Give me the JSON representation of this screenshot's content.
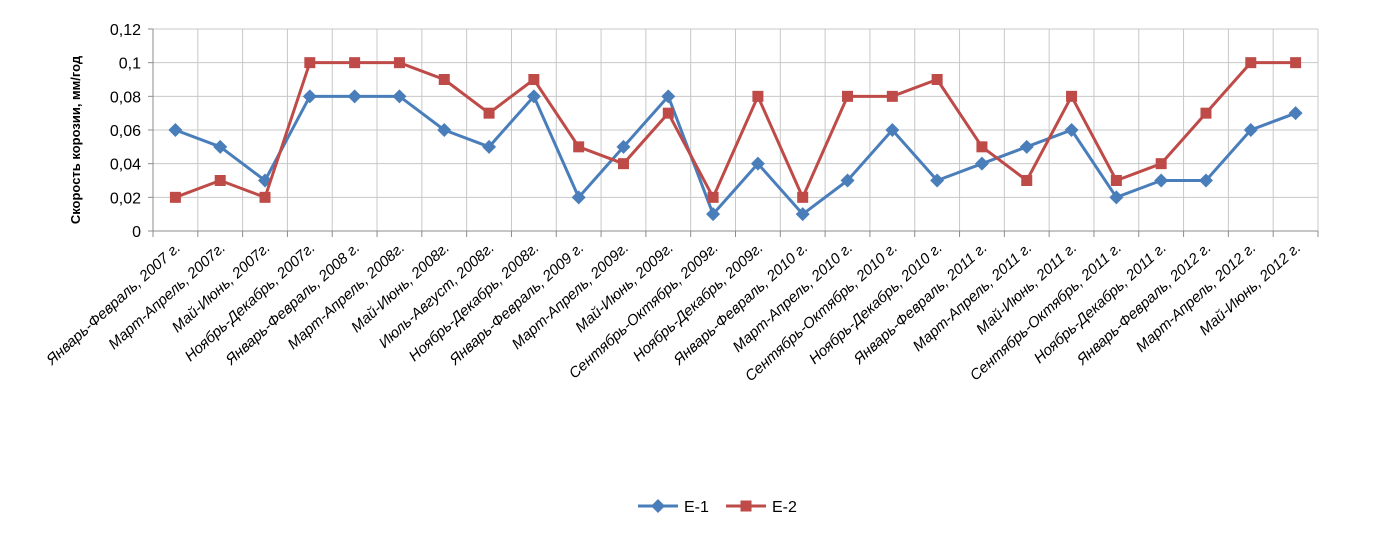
{
  "chart_data": {
    "type": "line",
    "ylabel": "Скорость корозии, мм/год",
    "xlabel": "",
    "ylim": [
      0,
      0.12
    ],
    "y_ticks": [
      "0",
      "0,02",
      "0,04",
      "0,06",
      "0,08",
      "0,1",
      "0,12"
    ],
    "grid": "vertical-and-horizontal",
    "legend_position": "bottom",
    "categories": [
      "Январь-Февраль, 2007 г.",
      "Март-Апрель, 2007г.",
      "Май-Июнь, 2007г.",
      "Ноябрь-Декабрь, 2007г.",
      "Январь-Февраль, 2008 г.",
      "Март-Апрель, 2008г.",
      "Май-Июнь, 2008г.",
      "Июль-Август, 2008г.",
      "Ноябрь-Декабрь, 2008г.",
      "Январь-Февраль, 2009 г.",
      "Март-Апрель, 2009г.",
      "Май-Июнь, 2009г.",
      "Сентябрь-Октябрь, 2009г.",
      "Ноябрь-Декабрь, 2009г.",
      "Январь-Февраль, 2010 г.",
      "Март-Апрель, 2010 г.",
      "Сентябрь-Октябрь, 2010 г.",
      "Ноябрь-Декабрь, 2010 г.",
      "Январь-Февраль, 2011 г.",
      "Март-Апрель, 2011 г.",
      "Май-Июнь, 2011 г.",
      "Сентябрь-Октябрь, 2011 г.",
      "Ноябрь-Декабрь, 2011 г.",
      "Январь-Февраль, 2012 г.",
      "Март-Апрель, 2012 г.",
      "Май-Июнь, 2012 г."
    ],
    "series": [
      {
        "name": "Е-1",
        "color": "#4a7ebb",
        "marker": "diamond",
        "values": [
          0.06,
          0.05,
          0.03,
          0.08,
          0.08,
          0.08,
          0.06,
          0.05,
          0.08,
          0.02,
          0.05,
          0.08,
          0.01,
          0.04,
          0.01,
          0.03,
          0.06,
          0.03,
          0.04,
          0.05,
          0.06,
          0.02,
          0.03,
          0.03,
          0.06,
          0.07
        ]
      },
      {
        "name": "Е-2",
        "color": "#be4b48",
        "marker": "square",
        "values": [
          0.02,
          0.03,
          0.02,
          0.1,
          0.1,
          0.1,
          0.09,
          0.07,
          0.09,
          0.05,
          0.04,
          0.07,
          0.02,
          0.08,
          0.02,
          0.08,
          0.08,
          0.09,
          0.05,
          0.03,
          0.08,
          0.03,
          0.04,
          0.07,
          0.1,
          0.1
        ]
      }
    ]
  }
}
